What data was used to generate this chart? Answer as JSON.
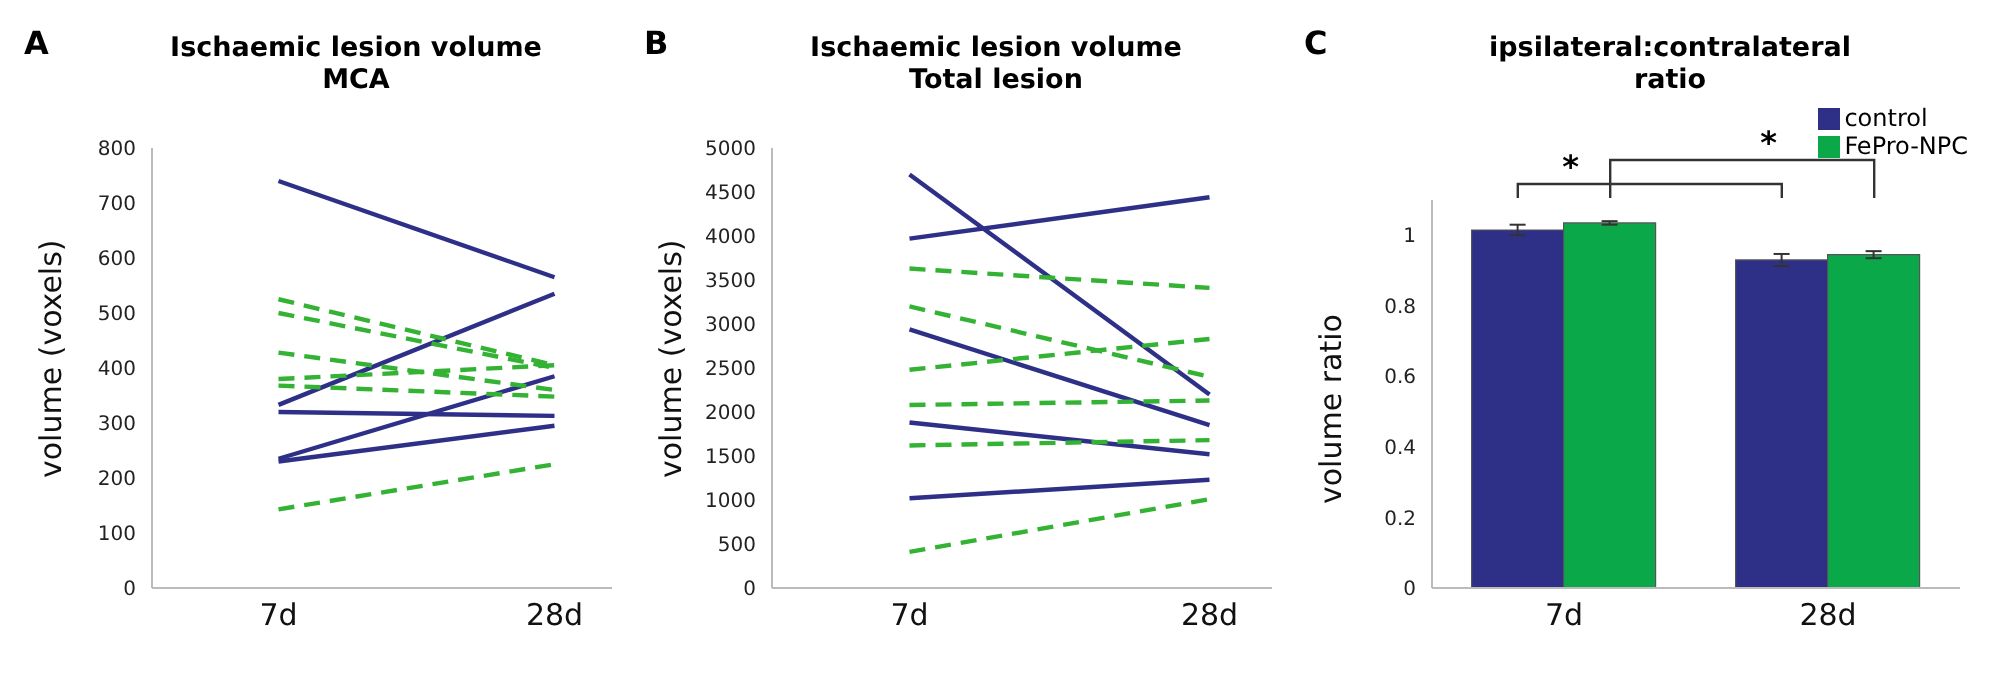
{
  "chart_data": [
    {
      "type": "line",
      "title": "Ischaemic lesion volume\nMCA",
      "ylabel": "volume (voxels)",
      "annotations": [
        "A"
      ],
      "categories": [
        "7d",
        "28d"
      ],
      "ylim": [
        0,
        800
      ],
      "yticks": [
        0,
        100,
        200,
        300,
        400,
        500,
        600,
        700,
        800
      ],
      "grid": false,
      "marker": "none",
      "series": [
        {
          "color": "#2e3088",
          "line_style": "solid",
          "values": [
            740,
            565
          ]
        },
        {
          "color": "#2e3088",
          "line_style": "solid",
          "values": [
            333,
            535
          ]
        },
        {
          "color": "#2e3088",
          "line_style": "solid",
          "values": [
            320,
            313
          ]
        },
        {
          "color": "#2e3088",
          "line_style": "solid",
          "values": [
            235,
            385
          ]
        },
        {
          "color": "#2e3088",
          "line_style": "solid",
          "values": [
            230,
            295
          ]
        },
        {
          "color": "#33b233",
          "line_style": "dashed",
          "values": [
            525,
            405
          ]
        },
        {
          "color": "#33b233",
          "line_style": "dashed",
          "values": [
            500,
            400
          ]
        },
        {
          "color": "#33b233",
          "line_style": "dashed",
          "values": [
            428,
            360
          ]
        },
        {
          "color": "#33b233",
          "line_style": "dashed",
          "values": [
            380,
            405
          ]
        },
        {
          "color": "#33b233",
          "line_style": "dashed",
          "values": [
            368,
            348
          ]
        },
        {
          "color": "#33b233",
          "line_style": "dashed",
          "values": [
            143,
            225
          ]
        }
      ]
    },
    {
      "type": "line",
      "title": "Ischaemic lesion volume\nTotal lesion",
      "ylabel": "volume (voxels)",
      "annotations": [
        "B"
      ],
      "categories": [
        "7d",
        "28d"
      ],
      "ylim": [
        0,
        5000
      ],
      "yticks": [
        0,
        500,
        1000,
        1500,
        2000,
        2500,
        3000,
        3500,
        4000,
        4500,
        5000
      ],
      "grid": false,
      "marker": "none",
      "series": [
        {
          "color": "#2e3088",
          "line_style": "solid",
          "values": [
            4700,
            2200
          ]
        },
        {
          "color": "#2e3088",
          "line_style": "solid",
          "values": [
            3970,
            4440
          ]
        },
        {
          "color": "#2e3088",
          "line_style": "solid",
          "values": [
            2940,
            1850
          ]
        },
        {
          "color": "#2e3088",
          "line_style": "solid",
          "values": [
            1880,
            1520
          ]
        },
        {
          "color": "#2e3088",
          "line_style": "solid",
          "values": [
            1020,
            1230
          ]
        },
        {
          "color": "#33b233",
          "line_style": "dashed",
          "values": [
            3630,
            3410
          ]
        },
        {
          "color": "#33b233",
          "line_style": "dashed",
          "values": [
            3200,
            2400
          ]
        },
        {
          "color": "#33b233",
          "line_style": "dashed",
          "values": [
            2480,
            2830
          ]
        },
        {
          "color": "#33b233",
          "line_style": "dashed",
          "values": [
            2080,
            2130
          ]
        },
        {
          "color": "#33b233",
          "line_style": "dashed",
          "values": [
            1620,
            1680
          ]
        },
        {
          "color": "#33b233",
          "line_style": "dashed",
          "values": [
            410,
            1010
          ]
        }
      ]
    },
    {
      "type": "bar",
      "title": "ipsilateral:contralateral\nratio",
      "ylabel": "volume ratio",
      "annotations": [
        "C",
        "*",
        "*"
      ],
      "categories": [
        "7d",
        "28d"
      ],
      "ylim": [
        0,
        1.1
      ],
      "yticks": [
        0,
        0.2,
        0.4,
        0.6,
        0.8,
        1
      ],
      "grid": false,
      "legend": "top right",
      "series": [
        {
          "name": "control",
          "color": "#2e3088",
          "values": [
            1.015,
            0.93
          ],
          "errors": [
            0.015,
            0.017
          ]
        },
        {
          "name": "FePro-NPC",
          "color": "#0ba84a",
          "values": [
            1.035,
            0.945
          ],
          "errors": [
            0.005,
            0.01
          ]
        }
      ]
    }
  ]
}
